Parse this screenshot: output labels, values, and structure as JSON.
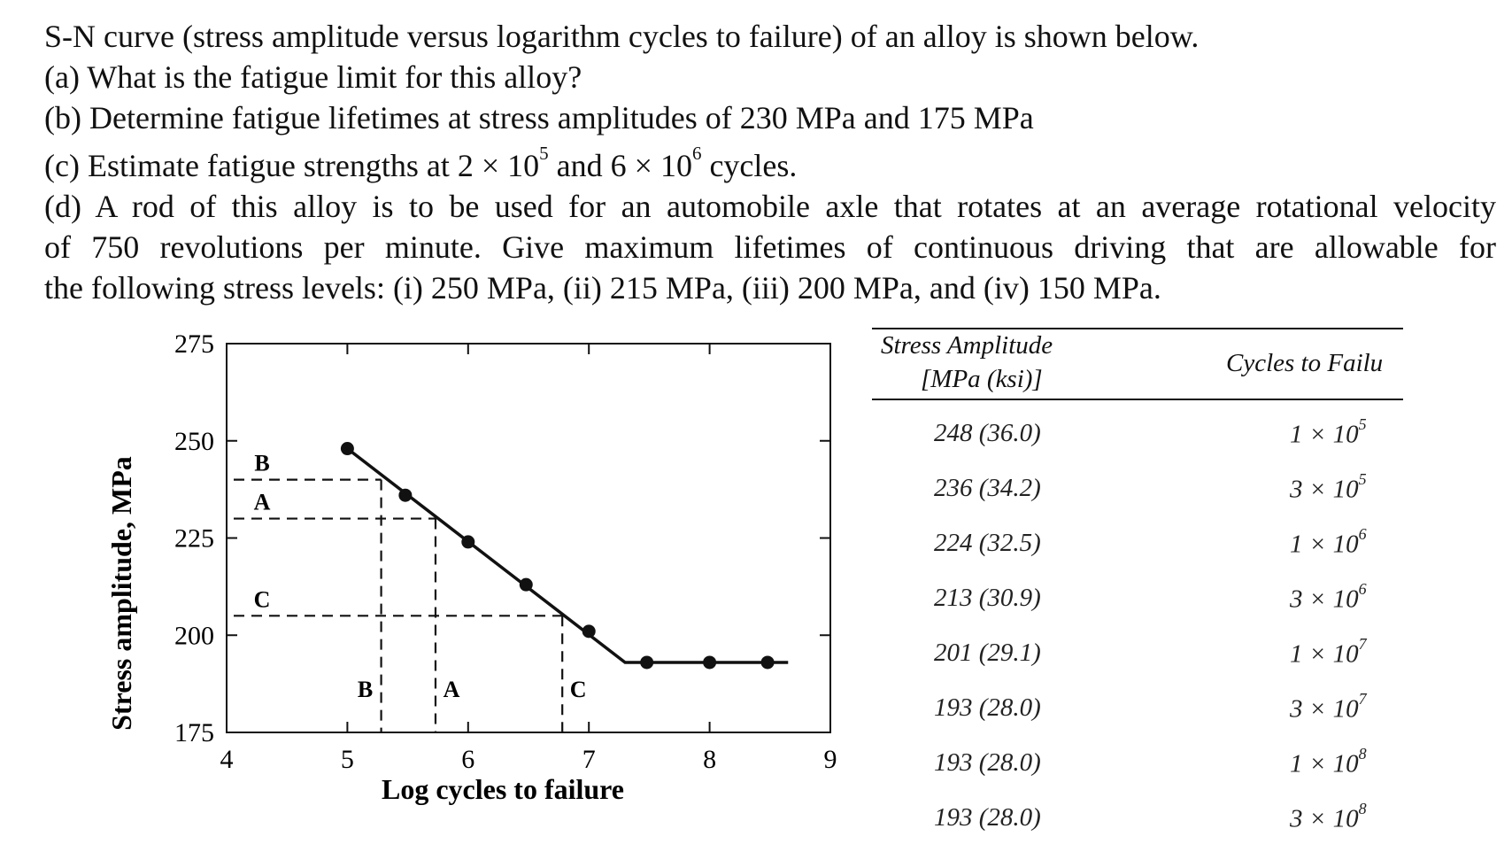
{
  "problem": {
    "line1": "S-N curve (stress amplitude versus logarithm cycles to failure) of an alloy is shown below.",
    "line2": "(a) What is the fatigue limit for this alloy?",
    "line3": "(b) Determine fatigue lifetimes at stress amplitudes of 230 MPa and 175 MPa",
    "line4_pre": "(c) Estimate fatigue strengths at 2 × 10",
    "line4_exp1": "5",
    "line4_mid": " and 6 × 10",
    "line4_exp2": "6",
    "line4_post": " cycles.",
    "line5": "(d) A rod of this alloy is to be used for an automobile axle that rotates at an average rotational velocity",
    "line6": "of 750 revolutions per minute. Give maximum lifetimes of continuous driving that are allowable for",
    "line7": "the following stress levels: (i) 250 MPa, (ii) 215 MPa, (iii) 200 MPa, and (iv) 150 MPa."
  },
  "chart_data": {
    "type": "line",
    "xlabel": "Log cycles to failure",
    "ylabel": "Stress amplitude, MPa",
    "xlim": [
      4,
      9
    ],
    "ylim": [
      175,
      275
    ],
    "x_ticks": [
      "4",
      "5",
      "6",
      "7",
      "8",
      "9"
    ],
    "y_ticks": [
      "175",
      "200",
      "225",
      "250",
      "275"
    ],
    "series": [
      {
        "values": [
          [
            5.0,
            248
          ],
          [
            5.48,
            236
          ],
          [
            6.0,
            224
          ],
          [
            6.48,
            213
          ],
          [
            7.0,
            201
          ],
          [
            7.48,
            193
          ],
          [
            8.0,
            193
          ],
          [
            8.48,
            193
          ]
        ]
      }
    ],
    "curve": [
      [
        5.0,
        248
      ],
      [
        7.3,
        193
      ],
      [
        8.65,
        193
      ]
    ],
    "guides": [
      {
        "label": "B",
        "stress": 240,
        "log_cycles": 5.28
      },
      {
        "label": "A",
        "stress": 230,
        "log_cycles": 5.73
      },
      {
        "label": "C",
        "stress": 205,
        "log_cycles": 6.78
      }
    ]
  },
  "table": {
    "col1_header_line1": "Stress Amplitude",
    "col1_header_line2": "[MPa (ksi)]",
    "col2_header": "Cycles to Failu",
    "rows": [
      {
        "stress": "248 (36.0)",
        "mantissa": "1 × 10",
        "exp": "5"
      },
      {
        "stress": "236 (34.2)",
        "mantissa": "3 × 10",
        "exp": "5"
      },
      {
        "stress": "224 (32.5)",
        "mantissa": "1 × 10",
        "exp": "6"
      },
      {
        "stress": "213 (30.9)",
        "mantissa": "3 × 10",
        "exp": "6"
      },
      {
        "stress": "201 (29.1)",
        "mantissa": "1 × 10",
        "exp": "7"
      },
      {
        "stress": "193 (28.0)",
        "mantissa": "3 × 10",
        "exp": "7"
      },
      {
        "stress": "193 (28.0)",
        "mantissa": "1 × 10",
        "exp": "8"
      },
      {
        "stress": "193 (28.0)",
        "mantissa": "3 × 10",
        "exp": "8"
      }
    ]
  }
}
